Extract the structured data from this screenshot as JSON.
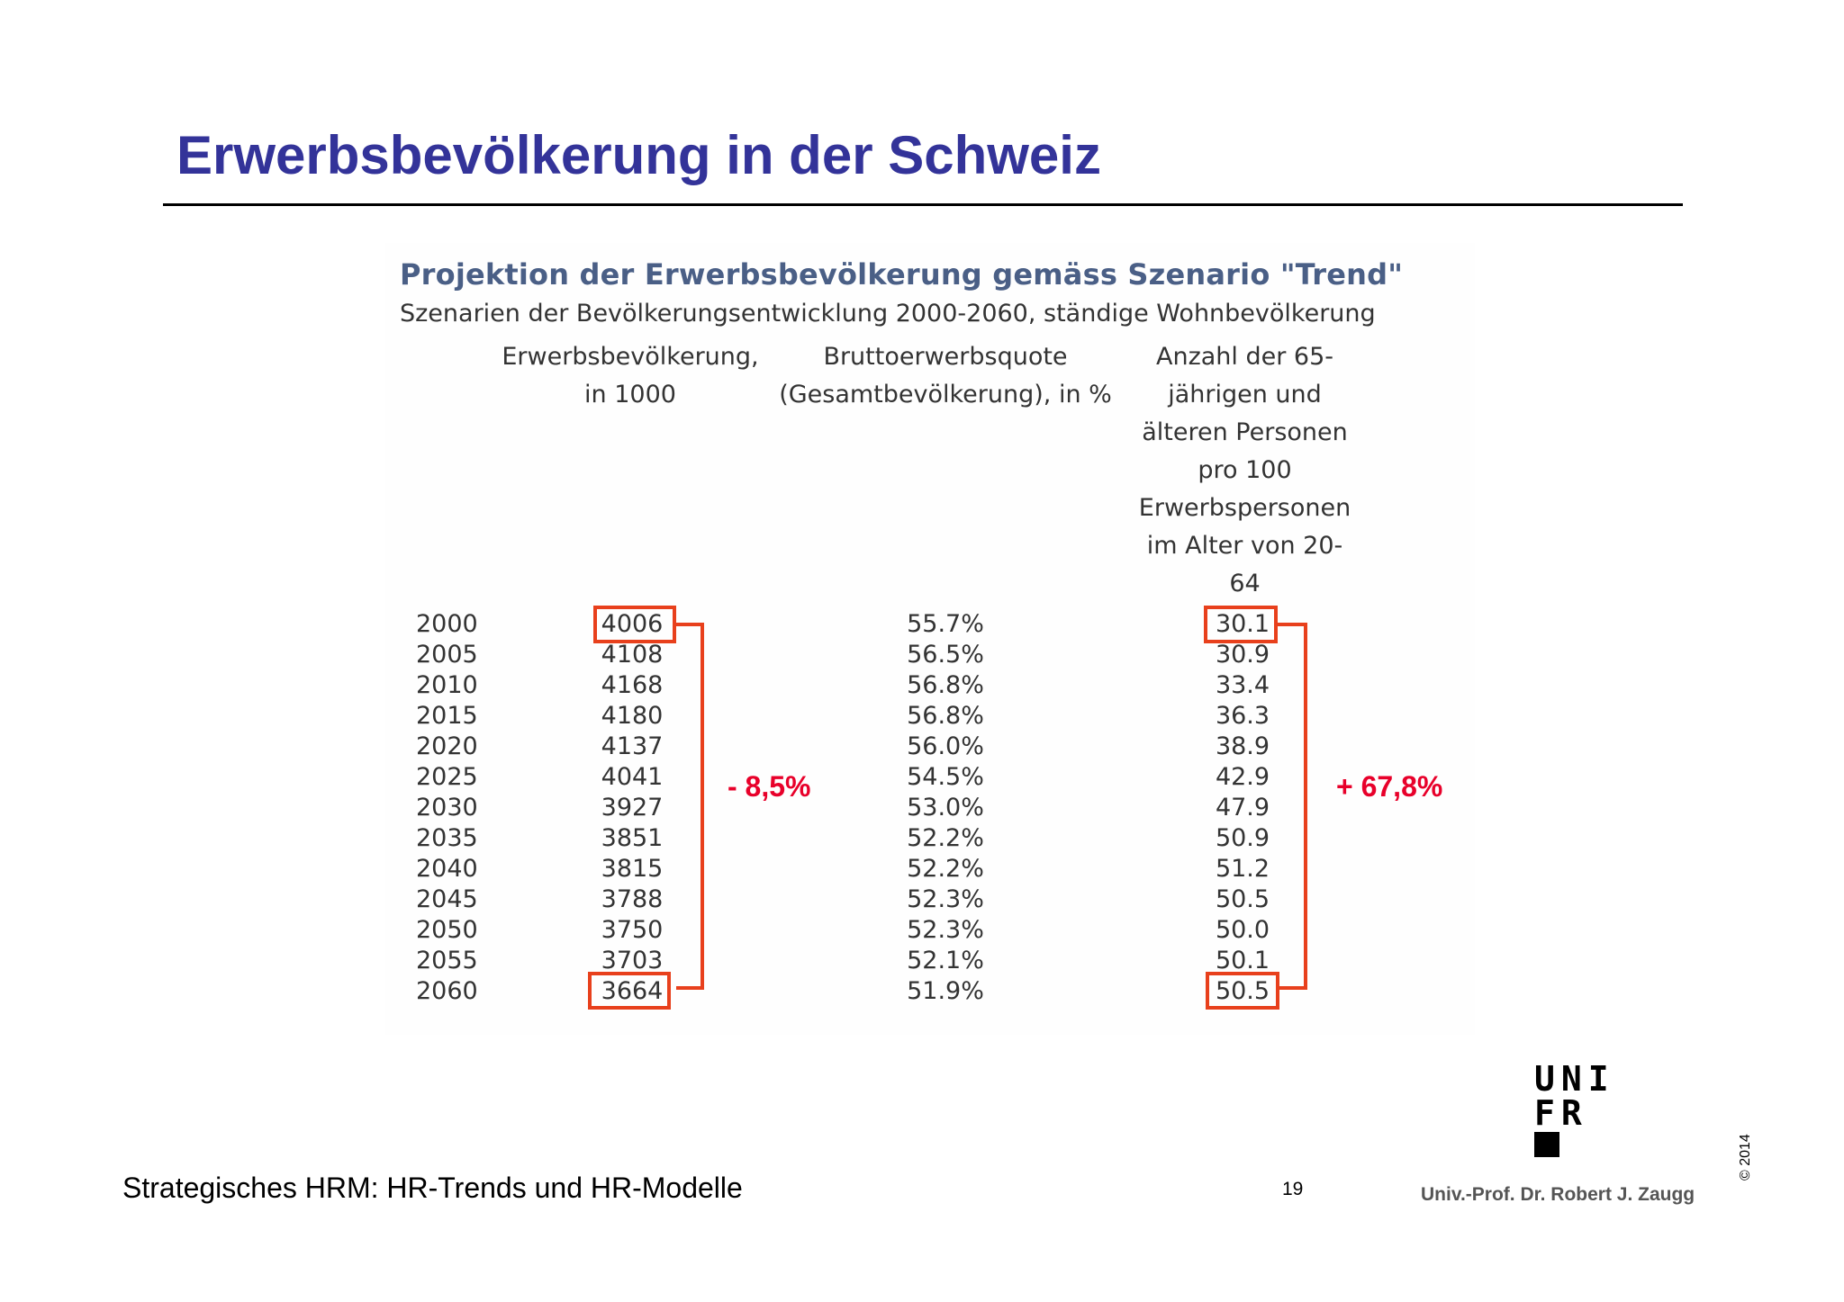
{
  "slide": {
    "title": "Erwerbsbevölkerung in der Schweiz",
    "footer_left": "Strategisches HRM: HR-Trends und HR-Modelle",
    "page_number": "19",
    "author": "Univ.-Prof. Dr. Robert J. Zaugg",
    "copyright": "© 2014"
  },
  "logo": {
    "line1": "UNI",
    "line2": "FR"
  },
  "table": {
    "title": "Projektion der Erwerbsbevölkerung gemäss Szenario \"Trend\"",
    "subtitle": "Szenarien der Bevölkerungsentwicklung 2000-2060, ständige Wohnbevölkerung",
    "headers": [
      [
        "Erwerbsbevölkerung,",
        "in 1000"
      ],
      [
        "Bruttoerwerbsquote",
        "(Gesamtbevölkerung), in %"
      ],
      [
        "Anzahl der 65-",
        "jährigen und",
        "älteren Personen",
        "pro 100",
        "Erwerbspersonen",
        "im Alter von 20-",
        "64"
      ]
    ],
    "rows": [
      {
        "year": "2000",
        "population": "4006",
        "quote": "55.7%",
        "ratio": "30.1"
      },
      {
        "year": "2005",
        "population": "4108",
        "quote": "56.5%",
        "ratio": "30.9"
      },
      {
        "year": "2010",
        "population": "4168",
        "quote": "56.8%",
        "ratio": "33.4"
      },
      {
        "year": "2015",
        "population": "4180",
        "quote": "56.8%",
        "ratio": "36.3"
      },
      {
        "year": "2020",
        "population": "4137",
        "quote": "56.0%",
        "ratio": "38.9"
      },
      {
        "year": "2025",
        "population": "4041",
        "quote": "54.5%",
        "ratio": "42.9"
      },
      {
        "year": "2030",
        "population": "3927",
        "quote": "53.0%",
        "ratio": "47.9"
      },
      {
        "year": "2035",
        "population": "3851",
        "quote": "52.2%",
        "ratio": "50.9"
      },
      {
        "year": "2040",
        "population": "3815",
        "quote": "52.2%",
        "ratio": "51.2"
      },
      {
        "year": "2045",
        "population": "3788",
        "quote": "52.3%",
        "ratio": "50.5"
      },
      {
        "year": "2050",
        "population": "3750",
        "quote": "52.3%",
        "ratio": "50.0"
      },
      {
        "year": "2055",
        "population": "3703",
        "quote": "52.1%",
        "ratio": "50.1"
      },
      {
        "year": "2060",
        "population": "3664",
        "quote": "51.9%",
        "ratio": "50.5"
      }
    ]
  },
  "annotations": {
    "population_change": "- 8,5%",
    "ratio_change": "+ 67,8%",
    "highlight_color": "#e8401c",
    "label_color": "#e8002a"
  }
}
